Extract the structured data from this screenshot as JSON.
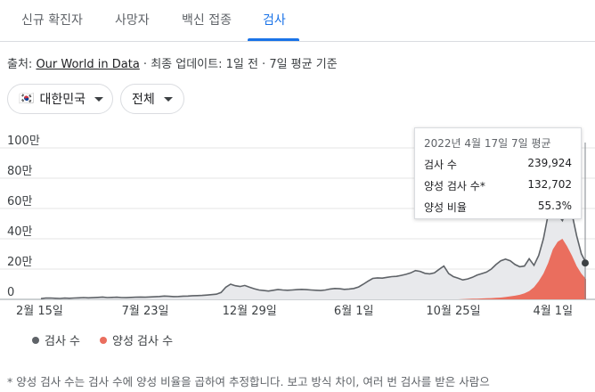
{
  "tabs": [
    {
      "label": "신규 확진자"
    },
    {
      "label": "사망자"
    },
    {
      "label": "백신 접종"
    },
    {
      "label": "검사"
    }
  ],
  "active_tab": 3,
  "source": {
    "prefix": "출처: ",
    "link_text": "Our World in Data",
    "suffix": " · 최종 업데이트: 1일 전 · 7일 평균 기준"
  },
  "filters": {
    "country": {
      "label": "대한민국",
      "flag": "🇰🇷"
    },
    "scope": {
      "label": "전체"
    }
  },
  "colors": {
    "tests": "#5f6368",
    "tests_fill": "#e8e9ec",
    "positive": "#ea6e5e",
    "accent": "#1a73e8"
  },
  "tooltip": {
    "title": "2022년 4월 17일 7일 평균",
    "rows": [
      {
        "label": "검사 수",
        "value": "239,924"
      },
      {
        "label": "양성 검사 수*",
        "value": "132,702"
      },
      {
        "label": "양성 비율",
        "value": "55.3%"
      }
    ]
  },
  "legend": [
    {
      "label": "검사 수",
      "color": "#5f6368"
    },
    {
      "label": "양성 검사 수",
      "color": "#ea6e5e"
    }
  ],
  "footnote": "* 양성 검사 수는 검사 수에 양성 비율을 곱하여 추정합니다. 보고 방식 차이, 여러 번 검사를 받은 사람으",
  "chart_data": {
    "type": "area",
    "y_tick_labels": [
      "0",
      "20만",
      "40만",
      "60만",
      "80만",
      "100만"
    ],
    "y_ticks": [
      0,
      200000,
      400000,
      600000,
      800000,
      1000000
    ],
    "ylim": [
      0,
      1000000
    ],
    "x_tick_labels": [
      "2월 15일",
      "7월 23일",
      "12월 29일",
      "6월 1일",
      "10월 25일",
      "4월 1일"
    ],
    "x_tick_index": [
      0,
      22,
      44,
      66,
      87,
      108
    ],
    "grid": true,
    "legend_position": "bottom",
    "series": [
      {
        "name": "검사 수",
        "values": [
          5000,
          8000,
          9000,
          7000,
          6000,
          8000,
          7000,
          9000,
          10000,
          12000,
          10000,
          11000,
          13000,
          15000,
          12000,
          13000,
          14000,
          12000,
          11000,
          13000,
          14000,
          15000,
          14000,
          16000,
          17000,
          19000,
          22000,
          20000,
          18000,
          19000,
          21000,
          22000,
          24000,
          25000,
          26000,
          28000,
          31000,
          34000,
          45000,
          80000,
          100000,
          90000,
          85000,
          92000,
          80000,
          70000,
          62000,
          58000,
          55000,
          60000,
          65000,
          62000,
          60000,
          62000,
          64000,
          66000,
          64000,
          62000,
          60000,
          58000,
          62000,
          68000,
          72000,
          70000,
          66000,
          68000,
          72000,
          82000,
          100000,
          120000,
          138000,
          142000,
          140000,
          145000,
          150000,
          152000,
          158000,
          165000,
          175000,
          190000,
          185000,
          172000,
          168000,
          175000,
          198000,
          220000,
          170000,
          150000,
          140000,
          128000,
          135000,
          145000,
          160000,
          170000,
          180000,
          200000,
          230000,
          255000,
          265000,
          255000,
          230000,
          215000,
          220000,
          268000,
          225000,
          290000,
          400000,
          560000,
          600000,
          560000,
          520000,
          600000,
          570000,
          420000,
          300000,
          239924
        ]
      },
      {
        "name": "양성 검사 수",
        "values": [
          0,
          0,
          0,
          0,
          0,
          0,
          0,
          0,
          0,
          0,
          0,
          0,
          0,
          0,
          0,
          0,
          0,
          0,
          0,
          0,
          0,
          0,
          0,
          0,
          0,
          0,
          0,
          0,
          0,
          0,
          0,
          0,
          0,
          0,
          0,
          0,
          0,
          0,
          0,
          0,
          0,
          0,
          0,
          0,
          0,
          0,
          0,
          0,
          0,
          0,
          0,
          0,
          0,
          0,
          0,
          0,
          0,
          0,
          0,
          0,
          0,
          0,
          0,
          0,
          0,
          0,
          0,
          0,
          0,
          0,
          0,
          0,
          0,
          0,
          0,
          0,
          0,
          0,
          0,
          0,
          0,
          0,
          0,
          0,
          0,
          0,
          0,
          0,
          0,
          2000,
          3000,
          4000,
          5000,
          6000,
          7000,
          8000,
          10000,
          12000,
          15000,
          20000,
          24000,
          30000,
          40000,
          55000,
          80000,
          120000,
          170000,
          240000,
          330000,
          380000,
          400000,
          350000,
          290000,
          220000,
          170000,
          132702
        ]
      }
    ]
  }
}
